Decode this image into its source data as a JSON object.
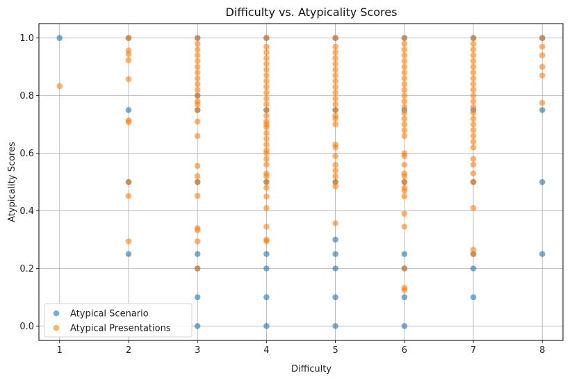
{
  "chart_data": {
    "type": "scatter",
    "title": "Difficulty vs. Atypicality Scores",
    "xlabel": "Difficulty",
    "ylabel": "Atypicality Scores",
    "xlim": [
      0.7,
      8.3
    ],
    "ylim": [
      -0.05,
      1.05
    ],
    "xticks": [
      1,
      2,
      3,
      4,
      5,
      6,
      7,
      8
    ],
    "yticks": [
      0.0,
      0.2,
      0.4,
      0.6,
      0.8,
      1.0
    ],
    "ytick_labels": [
      "0.0",
      "0.2",
      "0.4",
      "0.6",
      "0.8",
      "1.0"
    ],
    "grid": true,
    "legend_position": "lower-left",
    "series": [
      {
        "name": "Atypical Scenario",
        "color": "#1f77b4",
        "points": [
          [
            1,
            1.0
          ],
          [
            2,
            1.0
          ],
          [
            2,
            0.75
          ],
          [
            2,
            0.5
          ],
          [
            2,
            0.25
          ],
          [
            3,
            1.0
          ],
          [
            3,
            0.8
          ],
          [
            3,
            0.75
          ],
          [
            3,
            0.5
          ],
          [
            3,
            0.25
          ],
          [
            3,
            0.2
          ],
          [
            3,
            0.1
          ],
          [
            3,
            0.0
          ],
          [
            4,
            1.0
          ],
          [
            4,
            0.75
          ],
          [
            4,
            0.5
          ],
          [
            4,
            0.25
          ],
          [
            4,
            0.2
          ],
          [
            4,
            0.1
          ],
          [
            4,
            0.0
          ],
          [
            5,
            1.0
          ],
          [
            5,
            0.75
          ],
          [
            5,
            0.5
          ],
          [
            5,
            0.3
          ],
          [
            5,
            0.25
          ],
          [
            5,
            0.2
          ],
          [
            5,
            0.1
          ],
          [
            5,
            0.0
          ],
          [
            6,
            1.0
          ],
          [
            6,
            0.75
          ],
          [
            6,
            0.5
          ],
          [
            6,
            0.25
          ],
          [
            6,
            0.2
          ],
          [
            6,
            0.1
          ],
          [
            6,
            0.0
          ],
          [
            7,
            1.0
          ],
          [
            7,
            0.75
          ],
          [
            7,
            0.5
          ],
          [
            7,
            0.25
          ],
          [
            7,
            0.2
          ],
          [
            7,
            0.1
          ],
          [
            8,
            1.0
          ],
          [
            8,
            0.75
          ],
          [
            8,
            0.5
          ],
          [
            8,
            0.25
          ]
        ]
      },
      {
        "name": "Atypical Presentations",
        "color": "#ff7f0e",
        "points": [
          [
            1,
            0.833
          ],
          [
            2,
            1.0
          ],
          [
            2,
            0.957
          ],
          [
            2,
            0.944
          ],
          [
            2,
            0.923
          ],
          [
            2,
            0.857
          ],
          [
            2,
            0.714
          ],
          [
            2,
            0.708
          ],
          [
            2,
            0.5
          ],
          [
            2,
            0.452
          ],
          [
            2,
            0.294
          ],
          [
            3,
            1.0
          ],
          [
            3,
            0.98
          ],
          [
            3,
            0.96
          ],
          [
            3,
            0.94
          ],
          [
            3,
            0.92
          ],
          [
            3,
            0.9
          ],
          [
            3,
            0.88
          ],
          [
            3,
            0.86
          ],
          [
            3,
            0.84
          ],
          [
            3,
            0.82
          ],
          [
            3,
            0.8
          ],
          [
            3,
            0.78
          ],
          [
            3,
            0.77
          ],
          [
            3,
            0.75
          ],
          [
            3,
            0.71
          ],
          [
            3,
            0.66
          ],
          [
            3,
            0.556
          ],
          [
            3,
            0.52
          ],
          [
            3,
            0.5
          ],
          [
            3,
            0.452
          ],
          [
            3,
            0.34
          ],
          [
            3,
            0.333
          ],
          [
            3,
            0.294
          ],
          [
            3,
            0.2
          ],
          [
            4,
            1.0
          ],
          [
            4,
            0.97
          ],
          [
            4,
            0.95
          ],
          [
            4,
            0.93
          ],
          [
            4,
            0.91
          ],
          [
            4,
            0.89
          ],
          [
            4,
            0.87
          ],
          [
            4,
            0.85
          ],
          [
            4,
            0.83
          ],
          [
            4,
            0.81
          ],
          [
            4,
            0.79
          ],
          [
            4,
            0.77
          ],
          [
            4,
            0.75
          ],
          [
            4,
            0.73
          ],
          [
            4,
            0.71
          ],
          [
            4,
            0.7
          ],
          [
            4,
            0.69
          ],
          [
            4,
            0.67
          ],
          [
            4,
            0.65
          ],
          [
            4,
            0.63
          ],
          [
            4,
            0.61
          ],
          [
            4,
            0.6
          ],
          [
            4,
            0.58
          ],
          [
            4,
            0.56
          ],
          [
            4,
            0.53
          ],
          [
            4,
            0.52
          ],
          [
            4,
            0.5
          ],
          [
            4,
            0.48
          ],
          [
            4,
            0.45
          ],
          [
            4,
            0.41
          ],
          [
            4,
            0.345
          ],
          [
            4,
            0.3
          ],
          [
            4,
            0.294
          ],
          [
            5,
            1.0
          ],
          [
            5,
            0.97
          ],
          [
            5,
            0.95
          ],
          [
            5,
            0.93
          ],
          [
            5,
            0.91
          ],
          [
            5,
            0.89
          ],
          [
            5,
            0.87
          ],
          [
            5,
            0.85
          ],
          [
            5,
            0.83
          ],
          [
            5,
            0.81
          ],
          [
            5,
            0.79
          ],
          [
            5,
            0.77
          ],
          [
            5,
            0.75
          ],
          [
            5,
            0.73
          ],
          [
            5,
            0.72
          ],
          [
            5,
            0.7
          ],
          [
            5,
            0.63
          ],
          [
            5,
            0.62
          ],
          [
            5,
            0.59
          ],
          [
            5,
            0.56
          ],
          [
            5,
            0.54
          ],
          [
            5,
            0.52
          ],
          [
            5,
            0.5
          ],
          [
            5,
            0.485
          ],
          [
            5,
            0.357
          ],
          [
            6,
            1.0
          ],
          [
            6,
            0.98
          ],
          [
            6,
            0.96
          ],
          [
            6,
            0.94
          ],
          [
            6,
            0.92
          ],
          [
            6,
            0.9
          ],
          [
            6,
            0.88
          ],
          [
            6,
            0.86
          ],
          [
            6,
            0.84
          ],
          [
            6,
            0.82
          ],
          [
            6,
            0.8
          ],
          [
            6,
            0.78
          ],
          [
            6,
            0.76
          ],
          [
            6,
            0.74
          ],
          [
            6,
            0.72
          ],
          [
            6,
            0.7
          ],
          [
            6,
            0.68
          ],
          [
            6,
            0.66
          ],
          [
            6,
            0.6
          ],
          [
            6,
            0.59
          ],
          [
            6,
            0.56
          ],
          [
            6,
            0.53
          ],
          [
            6,
            0.52
          ],
          [
            6,
            0.5
          ],
          [
            6,
            0.48
          ],
          [
            6,
            0.47
          ],
          [
            6,
            0.45
          ],
          [
            6,
            0.39
          ],
          [
            6,
            0.345
          ],
          [
            6,
            0.2
          ],
          [
            6,
            0.133
          ],
          [
            6,
            0.125
          ],
          [
            7,
            1.0
          ],
          [
            7,
            0.98
          ],
          [
            7,
            0.96
          ],
          [
            7,
            0.94
          ],
          [
            7,
            0.92
          ],
          [
            7,
            0.9
          ],
          [
            7,
            0.88
          ],
          [
            7,
            0.86
          ],
          [
            7,
            0.84
          ],
          [
            7,
            0.82
          ],
          [
            7,
            0.8
          ],
          [
            7,
            0.78
          ],
          [
            7,
            0.76
          ],
          [
            7,
            0.74
          ],
          [
            7,
            0.72
          ],
          [
            7,
            0.7
          ],
          [
            7,
            0.68
          ],
          [
            7,
            0.66
          ],
          [
            7,
            0.64
          ],
          [
            7,
            0.62
          ],
          [
            7,
            0.58
          ],
          [
            7,
            0.56
          ],
          [
            7,
            0.53
          ],
          [
            7,
            0.5
          ],
          [
            7,
            0.41
          ],
          [
            7,
            0.265
          ],
          [
            7,
            0.25
          ],
          [
            8,
            1.0
          ],
          [
            8,
            0.97
          ],
          [
            8,
            0.94
          ],
          [
            8,
            0.9
          ],
          [
            8,
            0.87
          ],
          [
            8,
            0.775
          ]
        ]
      }
    ]
  }
}
